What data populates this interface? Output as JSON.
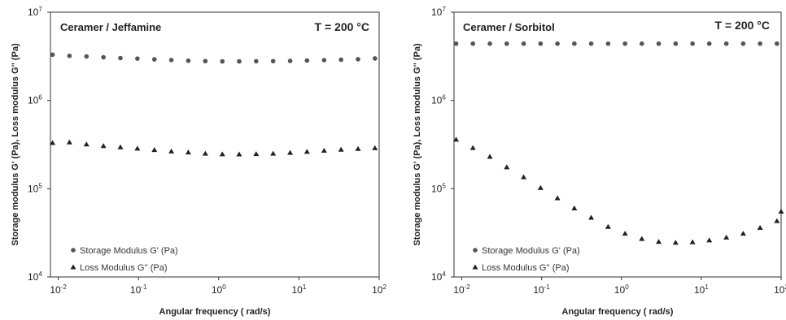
{
  "chart_data": [
    {
      "type": "scatter",
      "title": "Ceramer / Jeffamine",
      "annotation": "T = 200 °C",
      "xlabel": "Angular frequency ( rad/s)",
      "ylabel": "Storage modulus G' (Pa), Loss modulus G'' (Pa)",
      "xscale": "log",
      "yscale": "log",
      "xlim": [
        0.008,
        100
      ],
      "ylim": [
        10000,
        10000000
      ],
      "xticks": [
        {
          "value": 0.01,
          "base": "10",
          "exp": "-2"
        },
        {
          "value": 0.1,
          "base": "10",
          "exp": "-1"
        },
        {
          "value": 1,
          "base": "10",
          "exp": "0"
        },
        {
          "value": 10,
          "base": "10",
          "exp": "1"
        },
        {
          "value": 100,
          "base": "10",
          "exp": "2"
        }
      ],
      "yticks": [
        {
          "value": 10000,
          "base": "10",
          "exp": "4"
        },
        {
          "value": 100000,
          "base": "10",
          "exp": "5"
        },
        {
          "value": 1000000,
          "base": "10",
          "exp": "6"
        },
        {
          "value": 10000000,
          "base": "10",
          "exp": "7"
        }
      ],
      "legend_position": "bottom-left",
      "x": [
        0.0085,
        0.0138,
        0.0225,
        0.0366,
        0.0596,
        0.097,
        0.158,
        0.257,
        0.418,
        0.681,
        1.11,
        1.8,
        2.93,
        4.77,
        7.77,
        12.6,
        20.6,
        33.5,
        54.5,
        88.6
      ],
      "series": [
        {
          "name": "Storage Modulus G' (Pa)",
          "marker": "circle",
          "values": [
            3300000,
            3200000,
            3150000,
            3080000,
            3020000,
            2980000,
            2920000,
            2870000,
            2820000,
            2790000,
            2770000,
            2770000,
            2780000,
            2790000,
            2800000,
            2830000,
            2860000,
            2890000,
            2930000,
            2990000
          ]
        },
        {
          "name": "Loss Modulus G'' (Pa)",
          "marker": "triangle",
          "values": [
            330000,
            335000,
            318000,
            305000,
            295000,
            285000,
            275000,
            265000,
            258000,
            250000,
            246000,
            245000,
            247000,
            250000,
            255000,
            262000,
            270000,
            277000,
            283000,
            288000
          ]
        }
      ]
    },
    {
      "type": "scatter",
      "title": "Ceramer / Sorbitol",
      "annotation": "T = 200 °C",
      "xlabel": "Angular frequency ( rad/s)",
      "ylabel": "Storage modulus G' (Pa), Loss modulus G'' (Pa)",
      "xscale": "log",
      "yscale": "log",
      "xlim": [
        0.008,
        100
      ],
      "ylim": [
        10000,
        10000000
      ],
      "xticks": [
        {
          "value": 0.01,
          "base": "10",
          "exp": "-2"
        },
        {
          "value": 0.1,
          "base": "10",
          "exp": "-1"
        },
        {
          "value": 1,
          "base": "10",
          "exp": "0"
        },
        {
          "value": 10,
          "base": "10",
          "exp": "1"
        },
        {
          "value": 100,
          "base": "10",
          "exp": "2"
        }
      ],
      "yticks": [
        {
          "value": 10000,
          "base": "10",
          "exp": "4"
        },
        {
          "value": 100000,
          "base": "10",
          "exp": "5"
        },
        {
          "value": 1000000,
          "base": "10",
          "exp": "6"
        },
        {
          "value": 10000000,
          "base": "10",
          "exp": "7"
        }
      ],
      "legend_position": "bottom-left",
      "x": [
        0.0085,
        0.0138,
        0.0225,
        0.0366,
        0.0596,
        0.097,
        0.158,
        0.257,
        0.418,
        0.681,
        1.11,
        1.8,
        2.93,
        4.77,
        7.77,
        12.6,
        20.6,
        33.5,
        54.5,
        88.6
      ],
      "series": [
        {
          "name": "Storage Modulus G' (Pa)",
          "marker": "circle",
          "values": [
            4400000,
            4400000,
            4400000,
            4400000,
            4400000,
            4400000,
            4400000,
            4400000,
            4400000,
            4400000,
            4400000,
            4400000,
            4400000,
            4400000,
            4400000,
            4400000,
            4400000,
            4400000,
            4400000,
            4400000
          ]
        },
        {
          "name": "Loss Modulus G'' (Pa)",
          "marker": "triangle",
          "values": [
            360000,
            290000,
            230000,
            175000,
            135000,
            102000,
            78000,
            60000,
            47000,
            37000,
            31000,
            27000,
            25000,
            24500,
            24800,
            26000,
            28000,
            31000,
            36000,
            43000
          ]
        }
      ],
      "extra_points": [
        {
          "x": 100,
          "y": 55000,
          "series": 1
        }
      ]
    }
  ]
}
